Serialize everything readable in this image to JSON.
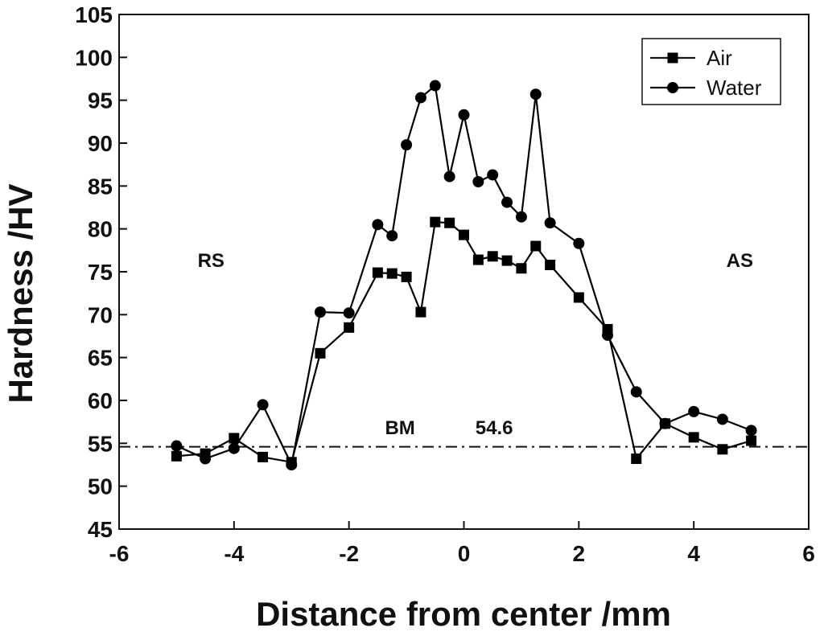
{
  "chart_data": {
    "type": "line",
    "title": "",
    "xlabel": "Distance from center /mm",
    "ylabel": "Hardness /HV",
    "xlim": [
      -6,
      6
    ],
    "ylim": [
      45,
      105
    ],
    "xticks": [
      -6,
      -4,
      -2,
      0,
      2,
      4,
      6
    ],
    "yticks": [
      45,
      50,
      55,
      60,
      65,
      70,
      75,
      80,
      85,
      90,
      95,
      100,
      105
    ],
    "grid": false,
    "legend_position": "top-right",
    "series": [
      {
        "name": "Air",
        "marker": "square",
        "color": "#000000",
        "points": [
          [
            -5,
            53.5
          ],
          [
            -4.5,
            53.8
          ],
          [
            -4,
            55.6
          ],
          [
            -3.5,
            53.4
          ],
          [
            -3,
            52.8
          ],
          [
            -2.5,
            65.5
          ],
          [
            -2,
            68.5
          ],
          [
            -1.5,
            74.9
          ],
          [
            -1.25,
            74.8
          ],
          [
            -1,
            74.4
          ],
          [
            -0.75,
            70.3
          ],
          [
            -0.5,
            80.8
          ],
          [
            -0.25,
            80.7
          ],
          [
            0,
            79.3
          ],
          [
            0.25,
            76.4
          ],
          [
            0.5,
            76.8
          ],
          [
            0.75,
            76.3
          ],
          [
            1,
            75.4
          ],
          [
            1.25,
            78.0
          ],
          [
            1.5,
            75.8
          ],
          [
            2,
            72.0
          ],
          [
            2.5,
            68.3
          ],
          [
            3,
            53.2
          ],
          [
            3.5,
            57.3
          ],
          [
            4,
            55.7
          ],
          [
            4.5,
            54.3
          ],
          [
            5,
            55.3
          ]
        ]
      },
      {
        "name": "Water",
        "marker": "circle",
        "color": "#000000",
        "points": [
          [
            -5,
            54.7
          ],
          [
            -4.5,
            53.2
          ],
          [
            -4,
            54.4
          ],
          [
            -3.5,
            59.5
          ],
          [
            -3,
            52.5
          ],
          [
            -2.5,
            70.3
          ],
          [
            -2,
            70.2
          ],
          [
            -1.5,
            80.5
          ],
          [
            -1.25,
            79.2
          ],
          [
            -1,
            89.8
          ],
          [
            -0.75,
            95.3
          ],
          [
            -0.5,
            96.7
          ],
          [
            -0.25,
            86.1
          ],
          [
            0,
            93.3
          ],
          [
            0.25,
            85.5
          ],
          [
            0.5,
            86.3
          ],
          [
            0.75,
            83.1
          ],
          [
            1,
            81.4
          ],
          [
            1.25,
            95.7
          ],
          [
            1.5,
            80.7
          ],
          [
            2,
            78.3
          ],
          [
            2.5,
            67.6
          ],
          [
            3,
            61.0
          ],
          [
            3.5,
            57.3
          ],
          [
            4,
            58.7
          ],
          [
            4.5,
            57.8
          ],
          [
            5,
            56.5
          ]
        ]
      }
    ],
    "reference_line": {
      "label": "BM",
      "value_label": "54.6",
      "y": 54.6,
      "style": "dash-dot"
    },
    "annotations": [
      {
        "text": "RS",
        "x": -4.4,
        "y": 76.3
      },
      {
        "text": "AS",
        "x": 4.8,
        "y": 76.3
      },
      {
        "text": "BM",
        "x": -0.85,
        "y": 56.8,
        "anchor": "end"
      },
      {
        "text": "54.6",
        "x": 0.2,
        "y": 56.8,
        "anchor": "start"
      }
    ]
  }
}
